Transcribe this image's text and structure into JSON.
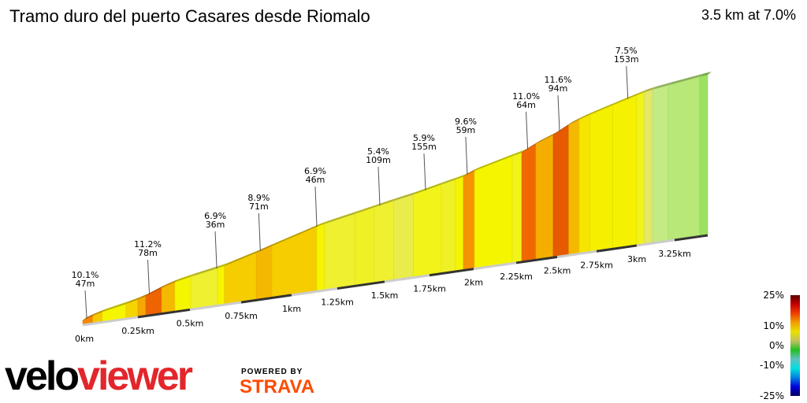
{
  "title": "Tramo duro del puerto Casares desde Riomalo",
  "summary": "3.5 km at 7.0%",
  "logo": {
    "velo": "velo",
    "viewer": "viewer",
    "powered_by": "POWERED BY",
    "strava": "STRAVA",
    "strava_color": "#fc4c02",
    "viewer_color": "#e3262b"
  },
  "chart_data": {
    "type": "area",
    "title": "Tramo duro del puerto Casares desde Riomalo",
    "xlabel": "",
    "ylabel": "",
    "x_unit": "km",
    "xlim": [
      0,
      3.5
    ],
    "x_ticks": [
      "0km",
      "0.25km",
      "0.5km",
      "0.75km",
      "1km",
      "1.25km",
      "1.5km",
      "1.75km",
      "2km",
      "2.25km",
      "2.5km",
      "2.75km",
      "3km",
      "3.25km"
    ],
    "segments": [
      {
        "end_km": 0.046,
        "gradient": 10
      },
      {
        "end_km": 0.089,
        "gradient": 8
      },
      {
        "end_km": 0.196,
        "gradient": 6
      },
      {
        "end_km": 0.25,
        "gradient": 7.5
      },
      {
        "end_km": 0.288,
        "gradient": 9
      },
      {
        "end_km": 0.364,
        "gradient": 11.2
      },
      {
        "end_km": 0.428,
        "gradient": 8.5
      },
      {
        "end_km": 0.504,
        "gradient": 6
      },
      {
        "end_km": 0.635,
        "gradient": 5
      },
      {
        "end_km": 0.669,
        "gradient": 6
      },
      {
        "end_km": 0.825,
        "gradient": 7.8
      },
      {
        "end_km": 0.902,
        "gradient": 8.5
      },
      {
        "end_km": 1.138,
        "gradient": 7.8
      },
      {
        "end_km": 1.181,
        "gradient": 6
      },
      {
        "end_km": 1.342,
        "gradient": 5
      },
      {
        "end_km": 1.446,
        "gradient": 5.2
      },
      {
        "end_km": 1.55,
        "gradient": 5
      },
      {
        "end_km": 1.66,
        "gradient": 4.5
      },
      {
        "end_km": 1.817,
        "gradient": 5.5
      },
      {
        "end_km": 1.897,
        "gradient": 5.2
      },
      {
        "end_km": 1.942,
        "gradient": 6
      },
      {
        "end_km": 2.005,
        "gradient": 9.6
      },
      {
        "end_km": 2.227,
        "gradient": 6
      },
      {
        "end_km": 2.284,
        "gradient": 5.5
      },
      {
        "end_km": 2.37,
        "gradient": 11
      },
      {
        "end_km": 2.476,
        "gradient": 8.8
      },
      {
        "end_km": 2.573,
        "gradient": 11.6
      },
      {
        "end_km": 2.64,
        "gradient": 8.5
      },
      {
        "end_km": 2.71,
        "gradient": 6.8
      },
      {
        "end_km": 2.85,
        "gradient": 6.3
      },
      {
        "end_km": 3.0,
        "gradient": 6.2
      },
      {
        "end_km": 3.05,
        "gradient": 5.5
      },
      {
        "end_km": 3.104,
        "gradient": 4
      },
      {
        "end_km": 3.208,
        "gradient": 2.8
      },
      {
        "end_km": 3.44,
        "gradient": 2.5
      },
      {
        "end_km": 3.5,
        "gradient": 1.8
      }
    ],
    "annotations": [
      {
        "km": 0.018,
        "gradient": "10.1%",
        "length": "47m"
      },
      {
        "km": 0.305,
        "gradient": "11.2%",
        "length": "78m"
      },
      {
        "km": 0.631,
        "gradient": "6.9%",
        "length": "36m"
      },
      {
        "km": 0.845,
        "gradient": "8.9%",
        "length": "71m"
      },
      {
        "km": 1.138,
        "gradient": "6.9%",
        "length": "46m"
      },
      {
        "km": 1.475,
        "gradient": "5.4%",
        "length": "109m"
      },
      {
        "km": 1.728,
        "gradient": "5.9%",
        "length": "155m"
      },
      {
        "km": 1.964,
        "gradient": "9.6%",
        "length": "59m"
      },
      {
        "km": 2.32,
        "gradient": "11.0%",
        "length": "64m"
      },
      {
        "km": 2.515,
        "gradient": "11.6%",
        "length": "94m"
      },
      {
        "km": 2.945,
        "gradient": "7.5%",
        "length": "153m"
      }
    ],
    "legend": {
      "type": "colorbar",
      "placement": "bottom-right",
      "labels": [
        "25%",
        "10%",
        "0%",
        "-10%",
        "-25%"
      ],
      "colors": [
        "#5a0000",
        "#c80000",
        "#f04000",
        "#f0a000",
        "#e8e000",
        "#c0c060",
        "#20c020",
        "#60c0c0",
        "#00e0e0",
        "#0080e0",
        "#0000e0",
        "#00005a"
      ]
    }
  }
}
